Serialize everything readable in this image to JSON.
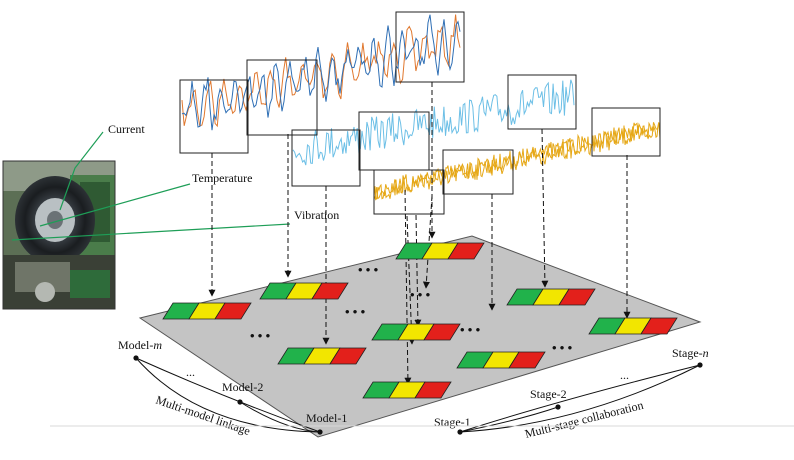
{
  "sensors": {
    "current": "Current",
    "temperature": "Temperature",
    "vibration": "Vibration"
  },
  "models": {
    "first": "Model-",
    "first_italic": "m",
    "second": "Model-2",
    "third": "Model-1",
    "ellipsis": "...",
    "caption": "Multi-model linkage"
  },
  "stages": {
    "first": "Stage-1",
    "second": "Stage-2",
    "last": "Stage-",
    "last_italic": "n",
    "ellipsis": "...",
    "caption": "Multi-stage collaboration"
  },
  "grid_ellipsis": "• • •",
  "colors": {
    "current_blue": "#2f6fb5",
    "current_orange": "#e0782f",
    "temperature": "#6cbfe6",
    "vibration": "#e6a817",
    "sensor_line": "#1e9e57",
    "platform": "#c4c4c4",
    "block_green": "#21b24b",
    "block_yellow": "#f2e600",
    "block_red": "#e3201b"
  }
}
